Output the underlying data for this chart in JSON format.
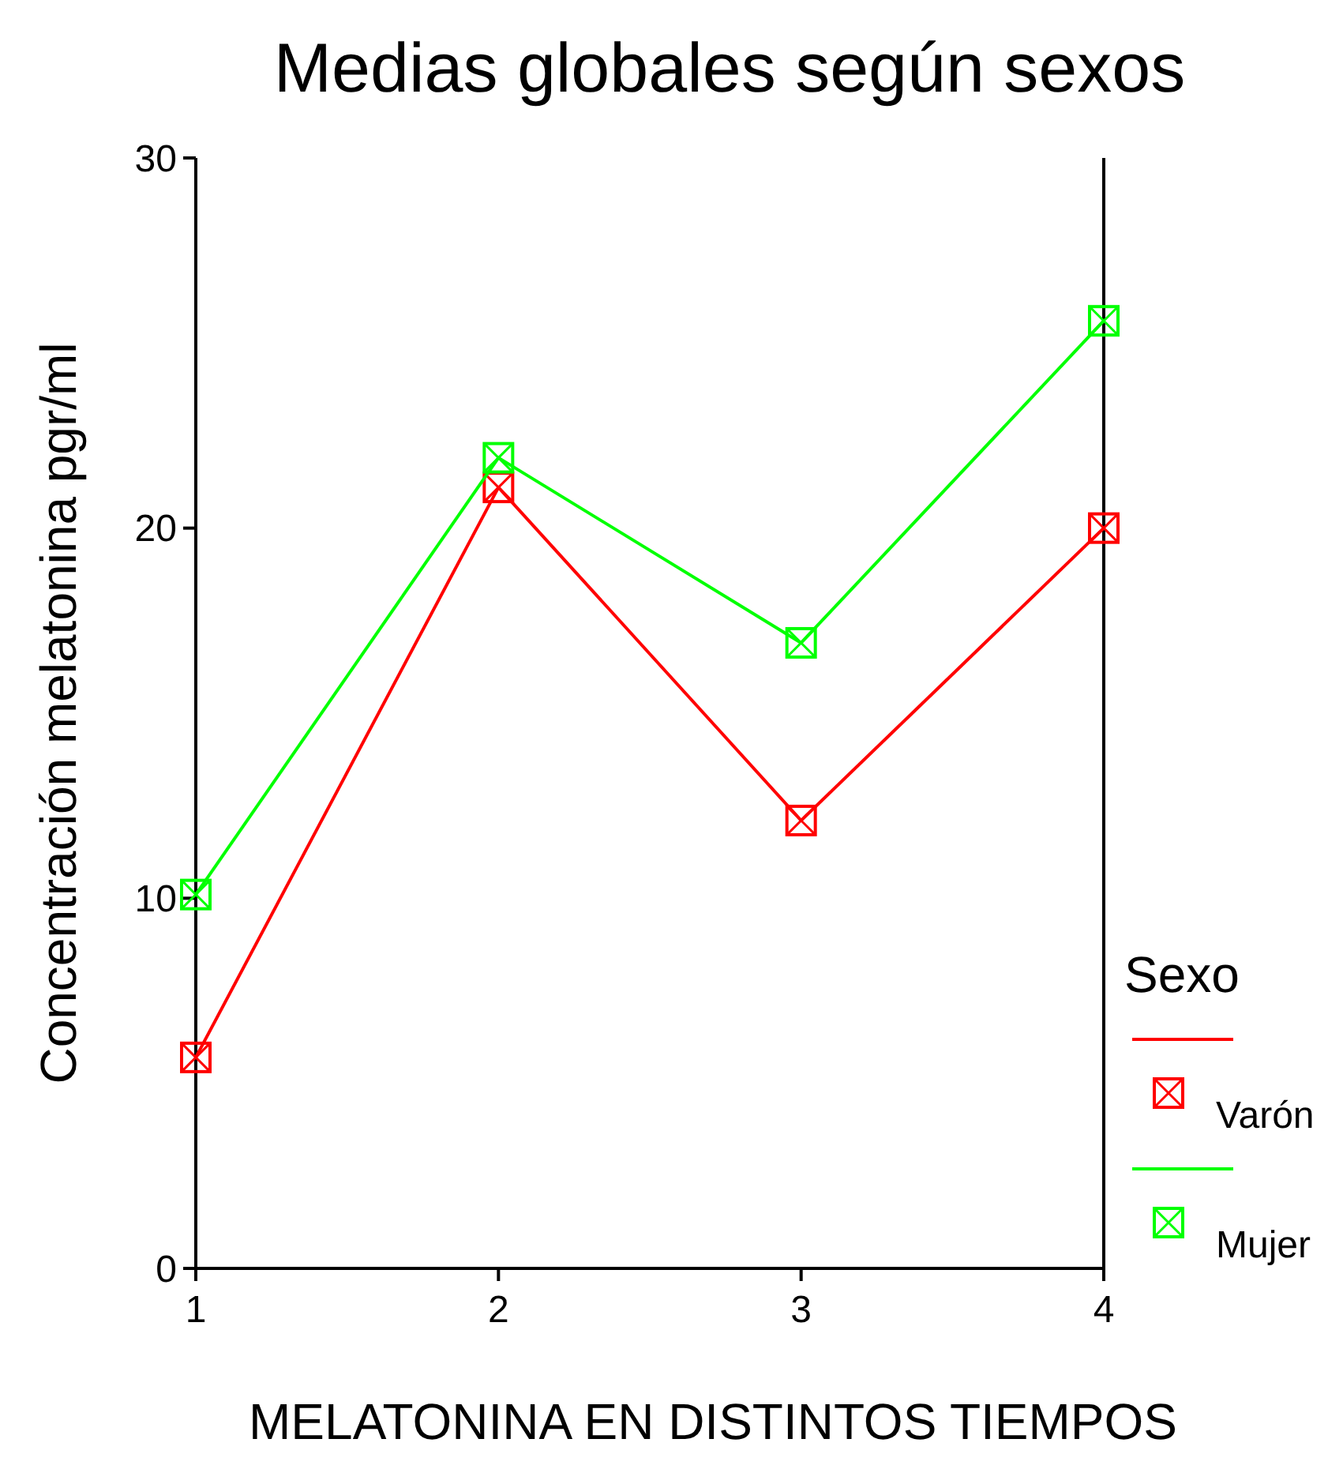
{
  "chart_data": {
    "type": "line",
    "title": "Medias globales según sexos",
    "xlabel": "MELATONINA EN DISTINTOS TIEMPOS",
    "ylabel": "Concentración melatonina pgr/ml",
    "legend_title": "Sexo",
    "x": [
      1,
      2,
      3,
      4
    ],
    "xlim": [
      1,
      4
    ],
    "xticks": [
      1,
      2,
      3,
      4
    ],
    "ylim": [
      0,
      30
    ],
    "yticks": [
      0,
      10,
      20,
      30
    ],
    "marker": "square",
    "legend": "right",
    "grid": false,
    "series": [
      {
        "name": "Varón",
        "color": "#ff0000",
        "values": [
          5.7,
          21.1,
          12.1,
          20.0
        ]
      },
      {
        "name": "Mujer",
        "color": "#00ff00",
        "values": [
          10.1,
          21.9,
          16.9,
          25.6
        ]
      }
    ]
  }
}
